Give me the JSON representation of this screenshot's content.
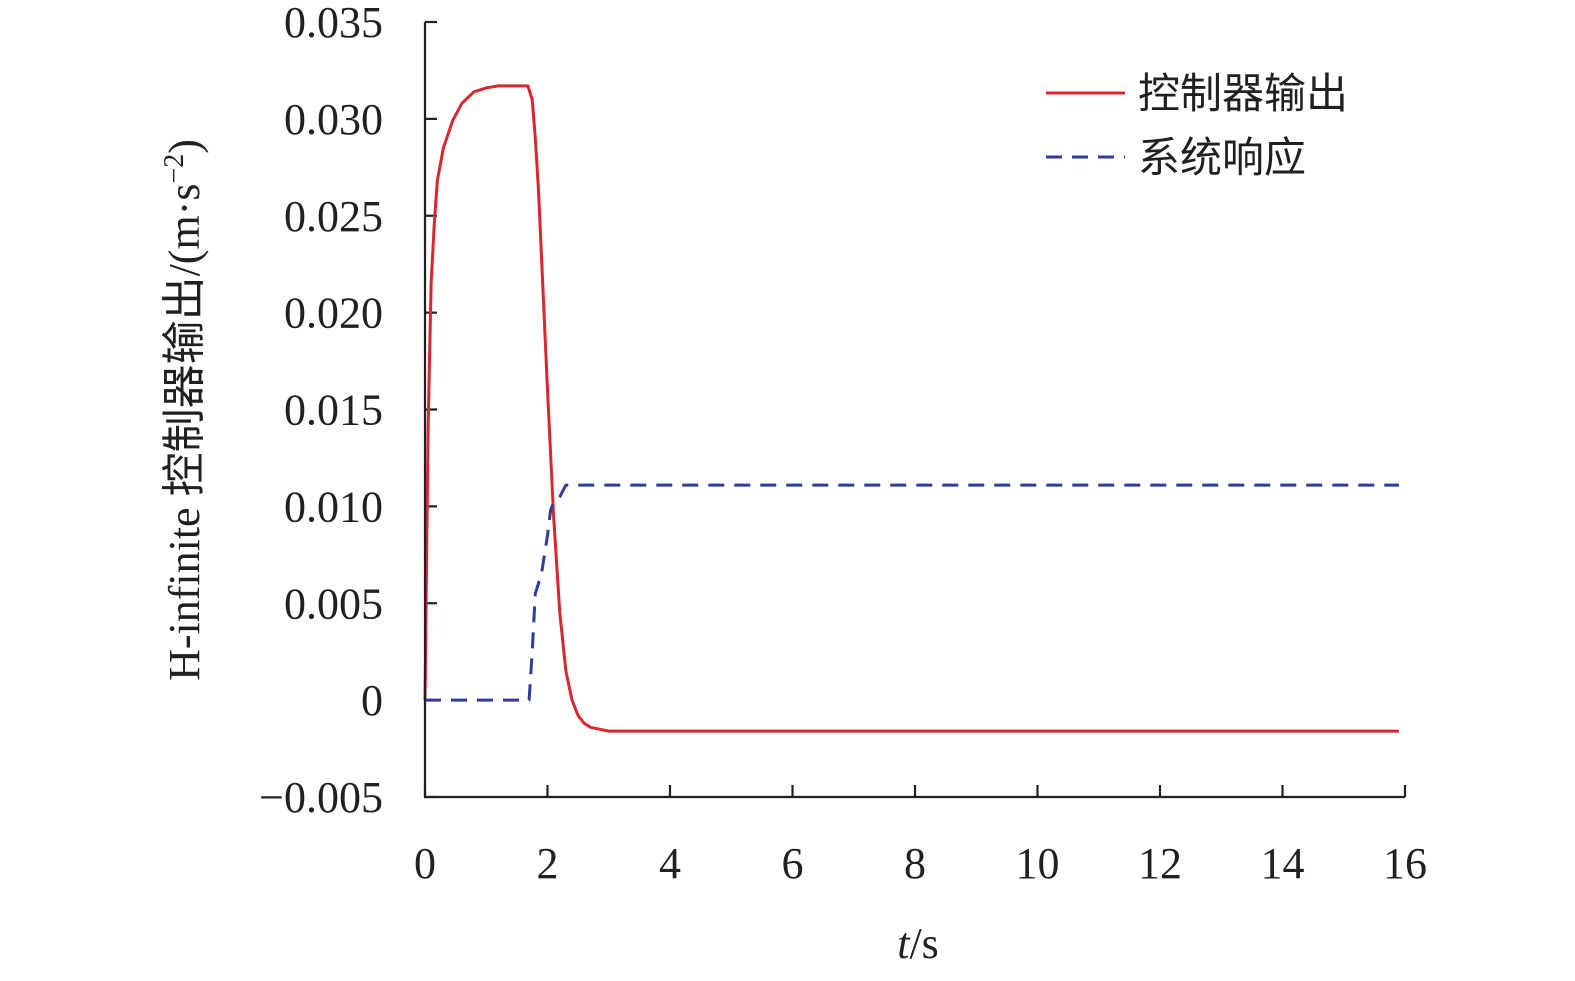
{
  "colors": {
    "controller_output": "#d7282f",
    "system_response": "#2e3d9a",
    "axis": "#231f20"
  },
  "chart_data": {
    "type": "line",
    "title": "",
    "xlabel_italic": "t",
    "xlabel_unit": "/s",
    "ylabel": "H-infinite 控制器输出/(m·s",
    "ylabel_sup": "−2",
    "ylabel_close": ")",
    "xlim": [
      0,
      16
    ],
    "ylim": [
      -0.005,
      0.035
    ],
    "xticks": [
      0,
      2,
      4,
      6,
      8,
      10,
      12,
      14,
      16
    ],
    "xtick_labels": [
      "0",
      "2",
      "4",
      "6",
      "8",
      "10",
      "12",
      "14",
      "16"
    ],
    "yticks": [
      -0.005,
      0,
      0.005,
      0.01,
      0.015,
      0.02,
      0.025,
      0.03,
      0.035
    ],
    "ytick_labels": [
      "−0.005",
      "0",
      "0.005",
      "0.010",
      "0.015",
      "0.020",
      "0.025",
      "0.030",
      "0.035"
    ],
    "grid": false,
    "legend_position": "top-right",
    "series": [
      {
        "name": "控制器输出",
        "style": "solid",
        "x": [
          0,
          0.05,
          0.1,
          0.15,
          0.2,
          0.3,
          0.45,
          0.6,
          0.8,
          1.0,
          1.2,
          1.4,
          1.6,
          1.68,
          1.75,
          1.8,
          1.85,
          1.9,
          2.0,
          2.1,
          2.2,
          2.3,
          2.4,
          2.5,
          2.6,
          2.7,
          2.85,
          3.0,
          3.3,
          3.7,
          4.5,
          6,
          8,
          10,
          12,
          14,
          15.9
        ],
        "y": [
          0,
          0.014,
          0.0215,
          0.0245,
          0.0268,
          0.0285,
          0.0299,
          0.0308,
          0.0314,
          0.0316,
          0.0317,
          0.0317,
          0.0317,
          0.0317,
          0.031,
          0.029,
          0.0265,
          0.023,
          0.016,
          0.0095,
          0.0045,
          0.0015,
          0.0,
          -0.0008,
          -0.0012,
          -0.0014,
          -0.0015,
          -0.0016,
          -0.0016,
          -0.0016,
          -0.0016,
          -0.0016,
          -0.0016,
          -0.0016,
          -0.0016,
          -0.0016,
          -0.0016
        ]
      },
      {
        "name": "系统响应",
        "style": "dashed",
        "x": [
          0,
          1.0,
          1.7,
          1.75,
          1.8,
          1.9,
          2.0,
          2.05,
          2.1,
          2.2,
          2.3,
          3,
          6,
          10,
          14,
          15.9
        ],
        "y": [
          0,
          0,
          0,
          0.0025,
          0.0055,
          0.0065,
          0.0085,
          0.0098,
          0.0102,
          0.0105,
          0.0111,
          0.0111,
          0.0111,
          0.0111,
          0.0111,
          0.0111
        ]
      }
    ]
  }
}
